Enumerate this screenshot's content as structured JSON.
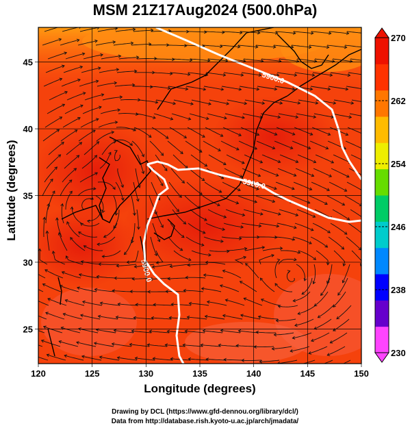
{
  "title": "MSM 21Z17Aug2024 (500.0hPa)",
  "axes": {
    "xlabel": "Longitude (degrees)",
    "ylabel": "Latitude  (degrees)",
    "xticks": [
      "120",
      "125",
      "130",
      "135",
      "140",
      "145",
      "150"
    ],
    "yticks": [
      "25",
      "30",
      "35",
      "40",
      "45"
    ],
    "xlim": [
      120,
      150
    ],
    "ylim": [
      22.4,
      47.6
    ]
  },
  "colorbar": {
    "ticks": [
      "270",
      "262",
      "254",
      "246",
      "238",
      "230"
    ],
    "range": [
      230,
      270
    ],
    "colors": [
      "#ff44ff",
      "#6600cc",
      "#0000ff",
      "#0088ff",
      "#00cccc",
      "#00cc66",
      "#66dd00",
      "#eeee00",
      "#ffbb00",
      "#ff7700",
      "#ff3300",
      "#ee1100"
    ]
  },
  "contours": [
    {
      "label": "5900.0"
    },
    {
      "label": "5900.0"
    },
    {
      "label": "5900.0"
    }
  ],
  "credits": {
    "line1": "Drawing by DCL (https://www.gfd-dennou.org/library/dcl/)",
    "line2": "Data from http://database.rish.kyoto-u.ac.jp/arch/jmadata/"
  }
}
